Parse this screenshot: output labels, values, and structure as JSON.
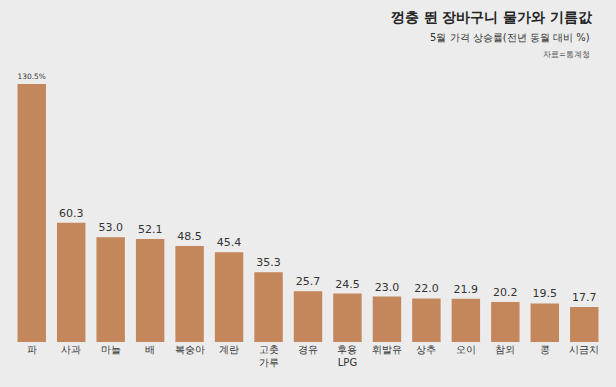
{
  "chart_data": {
    "type": "bar",
    "title": "껑충 뛴 장바구니 물가와 기름값",
    "subtitle": "5월 가격 상승률(전년 동월 대비 %)",
    "source": "자료=통계청",
    "categories": [
      "파",
      "사과",
      "마늘",
      "배",
      "복숭아",
      "계란",
      "고춧\n가루",
      "경유",
      "후용\nLPG",
      "휘발유",
      "상추",
      "오이",
      "참외",
      "콩",
      "시금치"
    ],
    "values": [
      130.5,
      60.3,
      53.0,
      52.1,
      48.5,
      45.4,
      35.3,
      25.7,
      24.5,
      23.0,
      22.0,
      21.9,
      20.2,
      19.5,
      17.7
    ],
    "value_labels": [
      "130.5%",
      "60.3",
      "53.0",
      "52.1",
      "48.5",
      "45.4",
      "35.3",
      "25.7",
      "24.5",
      "23.0",
      "22.0",
      "21.9",
      "20.2",
      "19.5",
      "17.7"
    ],
    "color": "#c4865b",
    "ylim": [
      0,
      135
    ],
    "grid": false,
    "data_labels": true,
    "tick_labels": "x"
  }
}
